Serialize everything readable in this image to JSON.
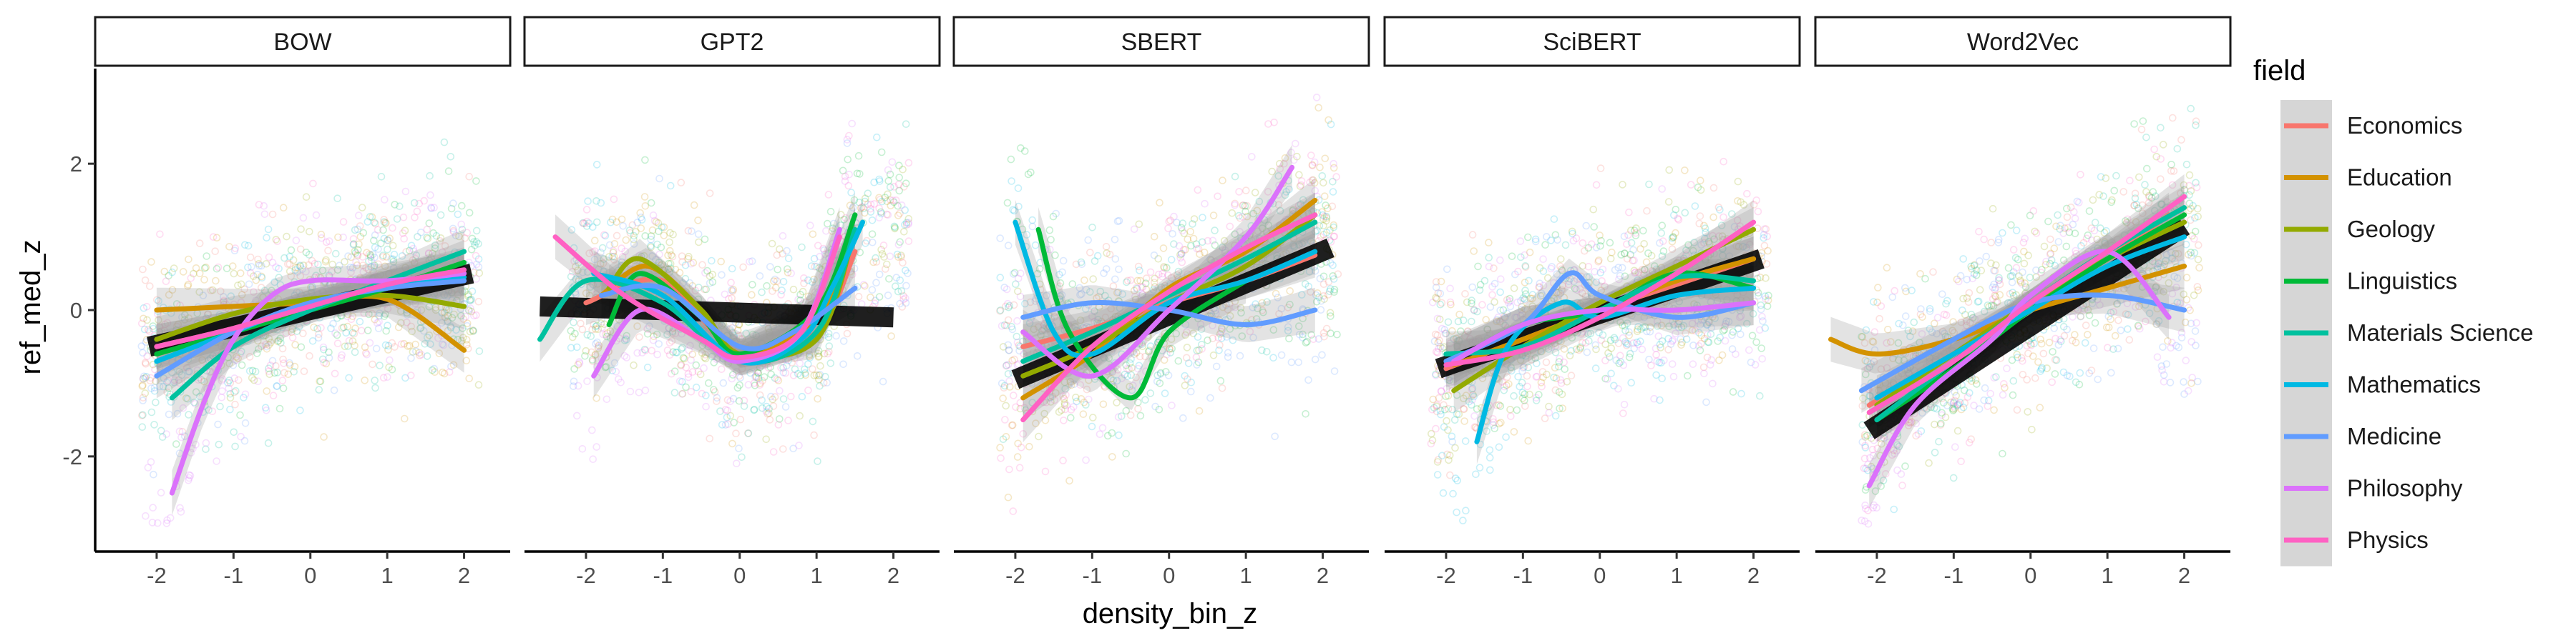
{
  "chart_data": {
    "type": "scatter",
    "facet_variable": "model",
    "facets": [
      "BOW",
      "GPT2",
      "SBERT",
      "SciBERT",
      "Word2Vec"
    ],
    "xlabel": "density_bin_z",
    "ylabel": "ref_med_z",
    "xlim": [
      -2.8,
      2.6
    ],
    "ylim": [
      -3.3,
      3.3
    ],
    "x_ticks": [
      -2,
      -1,
      0,
      1,
      2
    ],
    "y_ticks": [
      -2,
      0,
      2
    ],
    "grid": false,
    "legend": {
      "title": "field",
      "position": "right"
    },
    "fields": [
      "Economics",
      "Education",
      "Geology",
      "Linguistics",
      "Materials Science",
      "Mathematics",
      "Medicine",
      "Philosophy",
      "Physics"
    ],
    "colors": {
      "Economics": "#F8766D",
      "Education": "#D39200",
      "Geology": "#93AA00",
      "Linguistics": "#00BA38",
      "Materials Science": "#00C19F",
      "Mathematics": "#00B9E3",
      "Medicine": "#619CFF",
      "Philosophy": "#DB72FB",
      "Physics": "#FF61C3"
    },
    "point_style": {
      "alpha": 0.22,
      "approx_points_per_panel": 1100
    },
    "overall_fit": {
      "BOW": [
        [
          -2.1,
          -0.5
        ],
        [
          2.1,
          0.5
        ]
      ],
      "GPT2": [
        [
          -2.6,
          0.05
        ],
        [
          2.0,
          -0.1
        ]
      ],
      "SBERT": [
        [
          -2.0,
          -0.95
        ],
        [
          2.1,
          0.85
        ]
      ],
      "SciBERT": [
        [
          -2.1,
          -0.8
        ],
        [
          2.1,
          0.7
        ]
      ],
      "Word2Vec": [
        [
          -2.1,
          -1.65
        ],
        [
          2.0,
          1.15
        ]
      ]
    },
    "field_fits": {
      "BOW": {
        "Economics": [
          [
            -2.0,
            -0.5
          ],
          [
            -1.0,
            -0.25
          ],
          [
            0.0,
            0.05
          ],
          [
            1.0,
            0.3
          ],
          [
            2.0,
            0.5
          ]
        ],
        "Education": [
          [
            -2.0,
            0.0
          ],
          [
            -1.0,
            0.05
          ],
          [
            0.0,
            0.1
          ],
          [
            1.0,
            0.15
          ],
          [
            2.0,
            -0.55
          ]
        ],
        "Geology": [
          [
            -2.0,
            -0.4
          ],
          [
            -1.0,
            -0.05
          ],
          [
            0.0,
            0.15
          ],
          [
            1.0,
            0.2
          ],
          [
            2.0,
            0.05
          ]
        ],
        "Linguistics": [
          [
            -2.0,
            -0.6
          ],
          [
            -1.0,
            -0.3
          ],
          [
            0.0,
            0.0
          ],
          [
            1.0,
            0.3
          ],
          [
            2.0,
            0.65
          ]
        ],
        "Materials Science": [
          [
            -1.8,
            -1.2
          ],
          [
            -1.0,
            -0.5
          ],
          [
            0.0,
            0.0
          ],
          [
            1.0,
            0.4
          ],
          [
            2.0,
            0.8
          ]
        ],
        "Mathematics": [
          [
            -2.0,
            -0.7
          ],
          [
            -1.0,
            -0.3
          ],
          [
            0.0,
            0.1
          ],
          [
            1.0,
            0.3
          ],
          [
            2.0,
            0.45
          ]
        ],
        "Medicine": [
          [
            -2.0,
            -0.9
          ],
          [
            -1.0,
            -0.3
          ],
          [
            0.0,
            0.1
          ],
          [
            1.0,
            0.3
          ],
          [
            2.0,
            0.4
          ]
        ],
        "Philosophy": [
          [
            -1.8,
            -2.5
          ],
          [
            -1.4,
            -1.3
          ],
          [
            -1.0,
            -0.4
          ],
          [
            -0.5,
            0.2
          ],
          [
            0.0,
            0.4
          ],
          [
            1.0,
            0.4
          ],
          [
            2.0,
            0.5
          ]
        ],
        "Physics": [
          [
            -2.0,
            -0.5
          ],
          [
            -1.0,
            -0.25
          ],
          [
            0.0,
            0.05
          ],
          [
            1.0,
            0.35
          ],
          [
            2.0,
            0.55
          ]
        ]
      },
      "GPT2": {
        "Economics": [
          [
            -2.0,
            0.1
          ],
          [
            -1.0,
            0.4
          ],
          [
            0.0,
            -0.6
          ],
          [
            1.0,
            -0.3
          ],
          [
            1.5,
            0.8
          ]
        ],
        "Education": [
          [
            -1.8,
            0.2
          ],
          [
            -1.2,
            0.6
          ],
          [
            -0.5,
            0.0
          ],
          [
            0.0,
            -0.6
          ],
          [
            1.0,
            -0.1
          ],
          [
            1.5,
            1.0
          ]
        ],
        "Geology": [
          [
            -1.7,
            0.3
          ],
          [
            -1.3,
            0.7
          ],
          [
            -0.5,
            0.0
          ],
          [
            0.0,
            -0.6
          ],
          [
            1.0,
            -0.4
          ],
          [
            1.5,
            1.1
          ]
        ],
        "Linguistics": [
          [
            -1.7,
            -0.2
          ],
          [
            -1.3,
            0.5
          ],
          [
            -0.5,
            -0.1
          ],
          [
            0.0,
            -0.6
          ],
          [
            1.0,
            0.0
          ],
          [
            1.5,
            1.3
          ]
        ],
        "Materials Science": [
          [
            -2.6,
            -0.4
          ],
          [
            -2.0,
            0.4
          ],
          [
            -1.0,
            0.1
          ],
          [
            0.0,
            -0.7
          ],
          [
            1.0,
            -0.3
          ],
          [
            1.5,
            1.1
          ]
        ],
        "Mathematics": [
          [
            -1.9,
            0.5
          ],
          [
            -1.0,
            0.2
          ],
          [
            0.0,
            -0.7
          ],
          [
            0.8,
            -0.4
          ],
          [
            1.2,
            0.3
          ],
          [
            1.6,
            1.2
          ]
        ],
        "Medicine": [
          [
            -1.8,
            0.2
          ],
          [
            -1.0,
            0.3
          ],
          [
            0.0,
            -0.5
          ],
          [
            0.7,
            -0.3
          ],
          [
            1.5,
            0.3
          ]
        ],
        "Philosophy": [
          [
            -1.9,
            -0.9
          ],
          [
            -1.3,
            0.0
          ],
          [
            -0.5,
            -0.4
          ],
          [
            0.0,
            -0.7
          ],
          [
            0.8,
            -0.3
          ],
          [
            1.3,
            1.1
          ]
        ],
        "Physics": [
          [
            -2.4,
            1.0
          ],
          [
            -1.5,
            0.2
          ],
          [
            -0.5,
            -0.4
          ],
          [
            0.0,
            -0.65
          ],
          [
            0.8,
            -0.3
          ],
          [
            1.3,
            1.0
          ]
        ]
      },
      "SBERT": {
        "Economics": [
          [
            -1.9,
            -0.5
          ],
          [
            -1.0,
            -0.25
          ],
          [
            0.0,
            0.1
          ],
          [
            1.0,
            0.4
          ],
          [
            1.9,
            0.75
          ]
        ],
        "Education": [
          [
            -1.9,
            -1.2
          ],
          [
            -1.0,
            -0.6
          ],
          [
            0.0,
            0.3
          ],
          [
            1.0,
            0.8
          ],
          [
            1.9,
            1.5
          ]
        ],
        "Geology": [
          [
            -1.9,
            -0.9
          ],
          [
            -1.0,
            -0.5
          ],
          [
            0.0,
            0.1
          ],
          [
            1.0,
            0.6
          ],
          [
            1.9,
            1.3
          ]
        ],
        "Linguistics": [
          [
            -1.7,
            1.1
          ],
          [
            -1.3,
            -0.3
          ],
          [
            -0.5,
            -1.2
          ],
          [
            0.0,
            -0.3
          ],
          [
            1.0,
            0.4
          ]
        ],
        "Materials Science": [
          [
            -1.9,
            -0.7
          ],
          [
            -1.0,
            -0.3
          ],
          [
            0.0,
            0.2
          ],
          [
            1.0,
            0.7
          ],
          [
            1.9,
            1.2
          ]
        ],
        "Mathematics": [
          [
            -2.0,
            1.2
          ],
          [
            -1.5,
            -0.3
          ],
          [
            -1.0,
            -0.6
          ],
          [
            0.0,
            0.1
          ],
          [
            1.0,
            0.4
          ],
          [
            1.9,
            0.8
          ]
        ],
        "Medicine": [
          [
            -1.9,
            -0.1
          ],
          [
            -1.0,
            0.1
          ],
          [
            0.0,
            0.0
          ],
          [
            1.0,
            -0.2
          ],
          [
            1.9,
            0.0
          ]
        ],
        "Philosophy": [
          [
            -1.9,
            -0.3
          ],
          [
            -1.0,
            -0.9
          ],
          [
            0.0,
            0.0
          ],
          [
            1.0,
            1.0
          ],
          [
            1.6,
            1.95
          ]
        ],
        "Physics": [
          [
            -1.9,
            -1.5
          ],
          [
            -1.0,
            -0.5
          ],
          [
            0.0,
            0.25
          ],
          [
            1.0,
            0.85
          ],
          [
            1.9,
            1.3
          ]
        ]
      },
      "SciBERT": {
        "Economics": [
          [
            -2.0,
            -0.8
          ],
          [
            -1.0,
            -0.4
          ],
          [
            0.0,
            0.0
          ],
          [
            1.0,
            0.35
          ],
          [
            2.0,
            0.7
          ]
        ],
        "Education": [
          [
            -1.9,
            -0.75
          ],
          [
            -1.0,
            -0.4
          ],
          [
            0.0,
            0.0
          ],
          [
            1.0,
            0.4
          ],
          [
            2.0,
            0.7
          ]
        ],
        "Geology": [
          [
            -1.9,
            -1.1
          ],
          [
            -1.0,
            -0.5
          ],
          [
            0.0,
            0.1
          ],
          [
            1.0,
            0.6
          ],
          [
            2.0,
            1.1
          ]
        ],
        "Linguistics": [
          [
            -1.9,
            -0.7
          ],
          [
            -1.0,
            -0.2
          ],
          [
            0.0,
            0.0
          ],
          [
            1.0,
            0.5
          ],
          [
            2.0,
            0.3
          ]
        ],
        "Materials Science": [
          [
            -2.0,
            -0.6
          ],
          [
            -1.0,
            -0.5
          ],
          [
            0.0,
            0.0
          ],
          [
            1.0,
            0.45
          ],
          [
            2.0,
            0.4
          ]
        ],
        "Mathematics": [
          [
            -1.6,
            -1.8
          ],
          [
            -1.2,
            -0.5
          ],
          [
            -0.5,
            0.1
          ],
          [
            0.0,
            -0.1
          ],
          [
            1.0,
            0.2
          ],
          [
            2.0,
            0.3
          ]
        ],
        "Medicine": [
          [
            -2.0,
            -0.7
          ],
          [
            -1.0,
            -0.2
          ],
          [
            -0.4,
            0.5
          ],
          [
            0.0,
            0.2
          ],
          [
            1.0,
            -0.1
          ],
          [
            2.0,
            0.1
          ]
        ],
        "Philosophy": [
          [
            -1.9,
            -0.7
          ],
          [
            -1.0,
            -0.2
          ],
          [
            0.0,
            0.0
          ],
          [
            1.0,
            0.0
          ],
          [
            2.0,
            0.1
          ]
        ],
        "Physics": [
          [
            -2.0,
            -0.75
          ],
          [
            -1.0,
            -0.55
          ],
          [
            0.0,
            -0.1
          ],
          [
            1.0,
            0.5
          ],
          [
            2.0,
            1.2
          ]
        ]
      },
      "Word2Vec": {
        "Economics": [
          [
            -2.1,
            -1.3
          ],
          [
            -1.0,
            -0.6
          ],
          [
            0.0,
            0.1
          ],
          [
            1.0,
            0.7
          ],
          [
            1.8,
            1.3
          ]
        ],
        "Education": [
          [
            -2.6,
            -0.4
          ],
          [
            -2.0,
            -0.6
          ],
          [
            -1.0,
            -0.4
          ],
          [
            0.0,
            0.0
          ],
          [
            1.0,
            0.3
          ],
          [
            2.0,
            0.6
          ]
        ],
        "Geology": [
          [
            -2.0,
            -1.3
          ],
          [
            -1.0,
            -0.6
          ],
          [
            0.0,
            0.1
          ],
          [
            1.0,
            0.7
          ],
          [
            2.0,
            1.2
          ]
        ],
        "Linguistics": [
          [
            -2.0,
            -1.5
          ],
          [
            -1.0,
            -0.8
          ],
          [
            0.0,
            0.0
          ],
          [
            1.0,
            0.7
          ],
          [
            2.0,
            1.3
          ]
        ],
        "Materials Science": [
          [
            -2.0,
            -1.5
          ],
          [
            -1.0,
            -0.7
          ],
          [
            0.0,
            0.1
          ],
          [
            1.0,
            0.8
          ],
          [
            2.0,
            1.4
          ]
        ],
        "Mathematics": [
          [
            -2.0,
            -1.2
          ],
          [
            -1.0,
            -0.6
          ],
          [
            0.0,
            0.0
          ],
          [
            1.0,
            0.6
          ],
          [
            2.0,
            1.0
          ]
        ],
        "Medicine": [
          [
            -2.2,
            -1.1
          ],
          [
            -1.0,
            -0.4
          ],
          [
            0.0,
            0.1
          ],
          [
            1.0,
            0.2
          ],
          [
            2.0,
            0.0
          ]
        ],
        "Philosophy": [
          [
            -2.1,
            -2.4
          ],
          [
            -1.5,
            -1.3
          ],
          [
            -0.5,
            -0.4
          ],
          [
            0.0,
            0.2
          ],
          [
            1.0,
            0.8
          ],
          [
            1.8,
            -0.1
          ]
        ],
        "Physics": [
          [
            -2.1,
            -1.4
          ],
          [
            -1.0,
            -0.7
          ],
          [
            0.0,
            0.1
          ],
          [
            1.0,
            0.8
          ],
          [
            2.0,
            1.55
          ]
        ]
      }
    }
  }
}
